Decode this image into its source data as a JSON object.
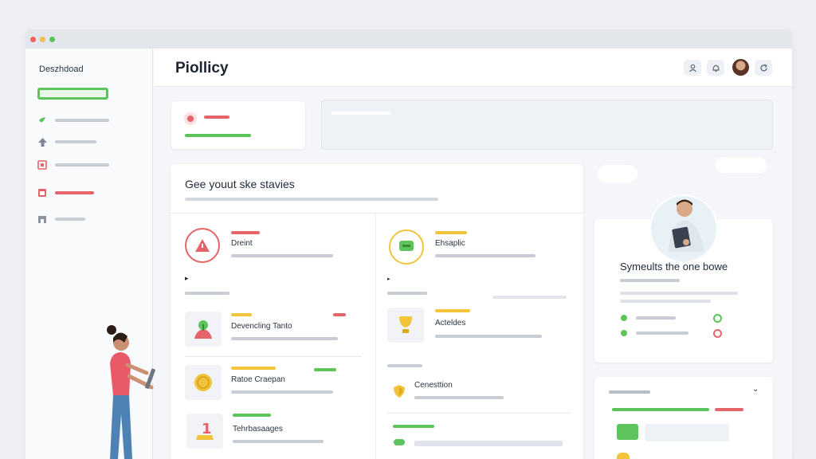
{
  "app": {
    "title": "Piollicy"
  },
  "colors": {
    "accent_green": "#5cc45a",
    "accent_red": "#e5646a",
    "accent_yellow": "#f1c43c"
  },
  "sidebar": {
    "title": "Deszhdoad",
    "items": [
      {
        "icon": "leaf-icon"
      },
      {
        "icon": "arrow-up-icon"
      },
      {
        "icon": "document-icon"
      },
      {
        "icon": "calendar-icon"
      },
      {
        "icon": "store-icon"
      }
    ]
  },
  "header": {
    "icons": [
      "user-icon",
      "bell-icon",
      "avatar",
      "refresh-icon"
    ]
  },
  "section": {
    "title": "Gee youut ske stavies",
    "left": [
      {
        "label": "Dreint",
        "icon": "alert-icon"
      },
      {
        "label": "Devencling Tanto",
        "icon": "plant-icon"
      },
      {
        "label": "Ratoe Craepan",
        "icon": "coin-icon"
      },
      {
        "label": "Tehrbasaages",
        "icon": "number-one-icon"
      }
    ],
    "right": [
      {
        "label": "Ehsaplic",
        "icon": "chat-icon"
      },
      {
        "label": "Acteldes",
        "icon": "trophy-icon"
      },
      {
        "label": "Cenesttion",
        "icon": "shield-icon"
      }
    ]
  },
  "profile_card": {
    "title": "Symeults the one bowe"
  }
}
